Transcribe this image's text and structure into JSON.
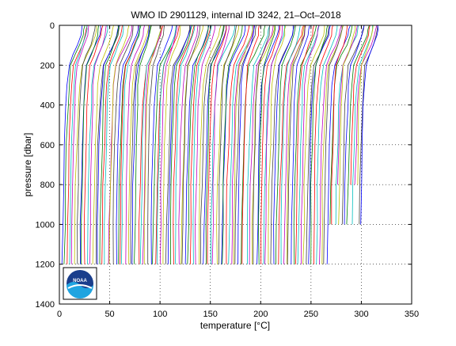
{
  "chart_data": {
    "type": "line",
    "title": "WMO ID 2901129, internal ID 3242, 21–Oct–2018",
    "xlabel": "temperature [°C]",
    "ylabel": "pressure [dbar]",
    "xlim": [
      0,
      350
    ],
    "ylim": [
      0,
      1400
    ],
    "y_reversed": true,
    "xticks": [
      "0",
      "50",
      "100",
      "150",
      "200",
      "250",
      "300",
      "350"
    ],
    "yticks": [
      "0",
      "200",
      "400",
      "600",
      "800",
      "1000",
      "1200",
      "1400"
    ],
    "grid": true,
    "profile_count": 120,
    "profile_x_offset_step": 2.5,
    "profile_temperature_shape": {
      "pressure": [
        0,
        20,
        50,
        100,
        150,
        200,
        300,
        400,
        600,
        800,
        1000,
        1200
      ],
      "temperature": [
        22,
        21.5,
        20.5,
        17,
        13,
        9,
        7,
        6,
        4.8,
        3.8,
        3.2,
        2.8
      ]
    },
    "series_colors": [
      "#0000ff",
      "#008000",
      "#ff0000",
      "#00bfbf",
      "#bf00bf",
      "#bfbf00",
      "#404040"
    ],
    "logo": {
      "name": "NOAA",
      "colors": [
        "#1a3e8c",
        "#20a4e0",
        "#ffffff"
      ]
    }
  }
}
